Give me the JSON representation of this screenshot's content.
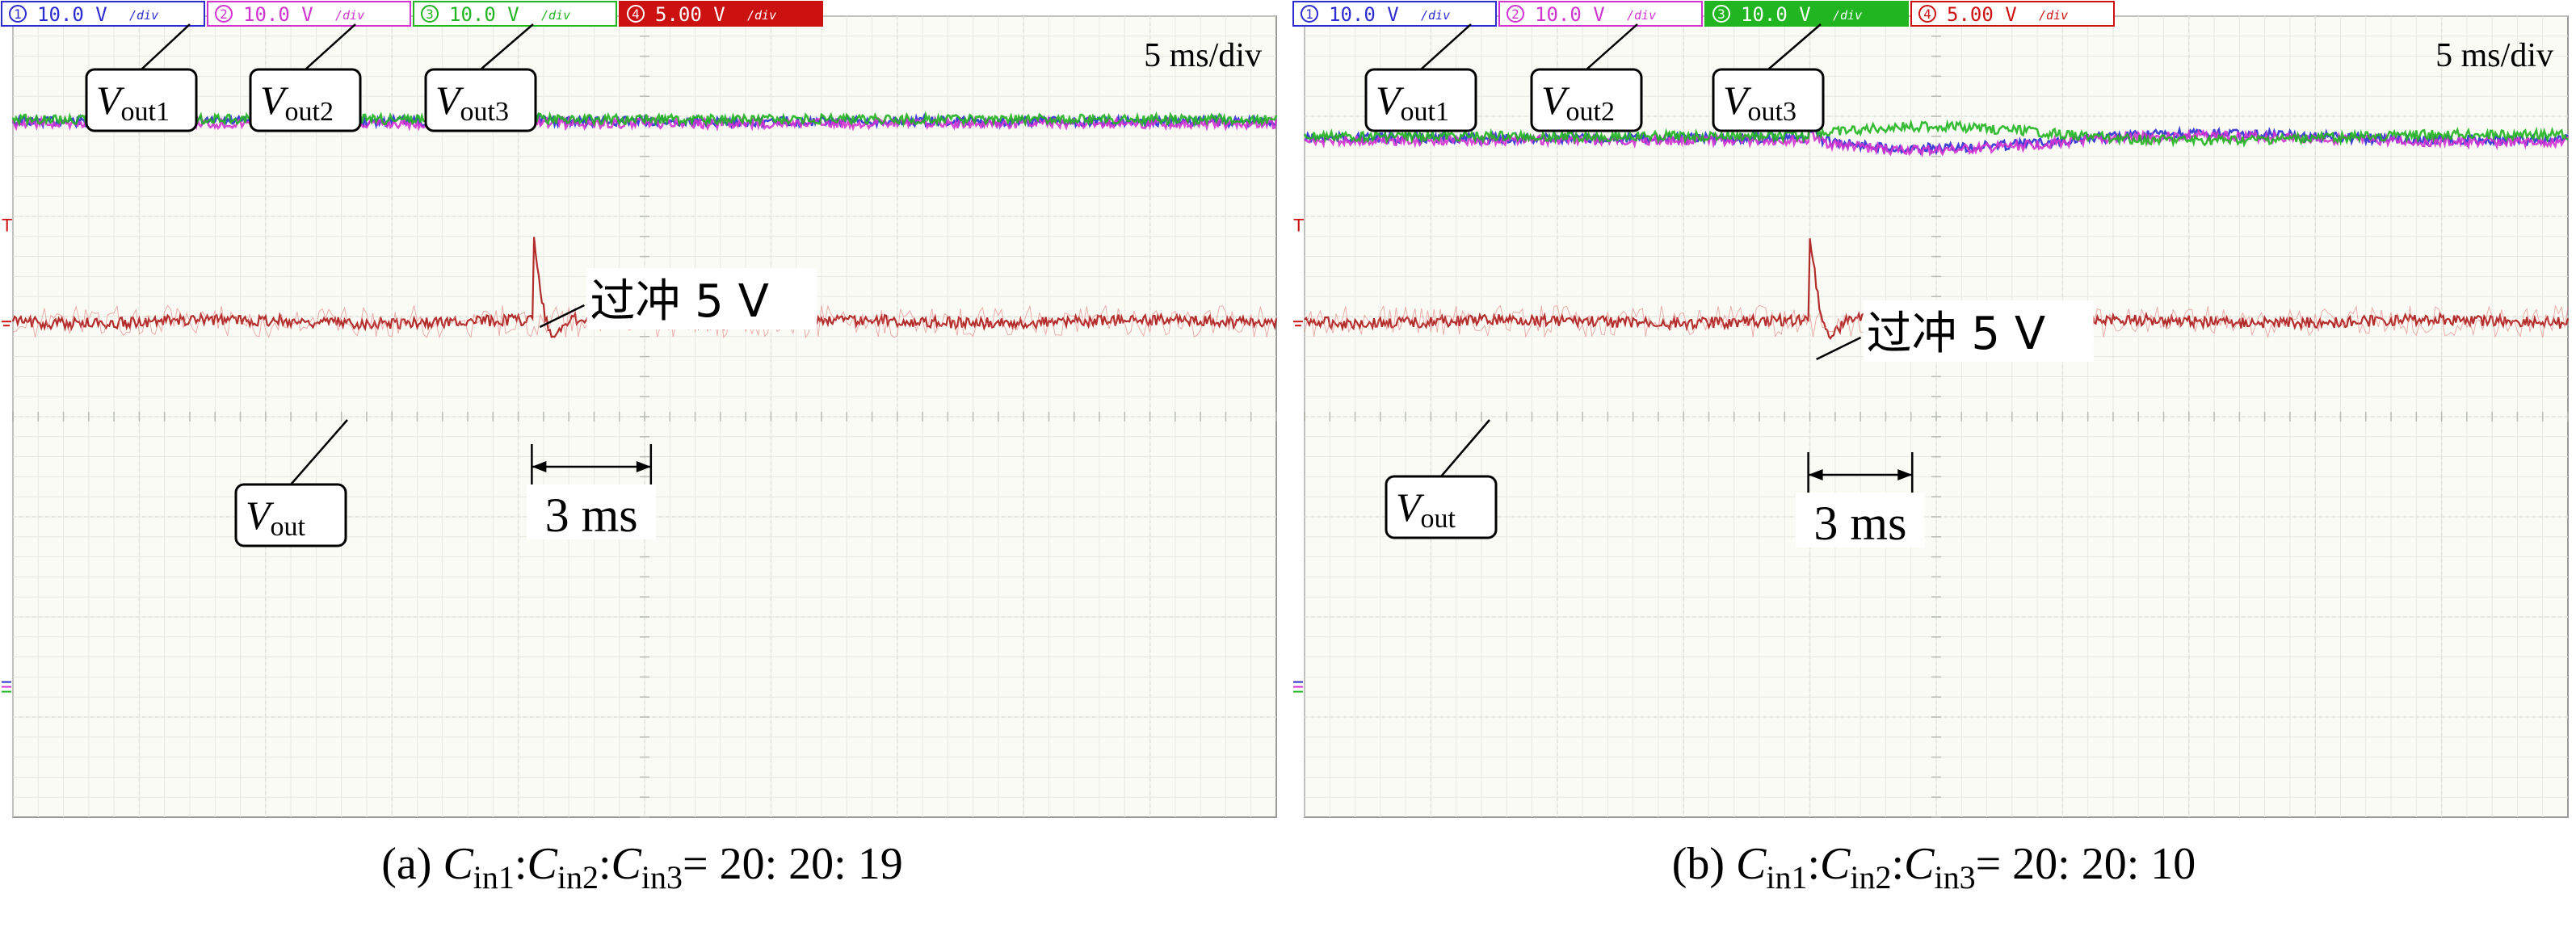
{
  "chart_data": [
    {
      "panel": "a",
      "type": "line",
      "caption": {
        "prefix": "(a) ",
        "ratio": "= 20: 20: 19"
      },
      "timebase": "5 ms/div",
      "channels": [
        {
          "id": "1",
          "scale": "10.0 V",
          "unit": "div",
          "color": "#2b2bd0"
        },
        {
          "id": "2",
          "scale": "10.0 V",
          "unit": "div",
          "color": "#d033d0"
        },
        {
          "id": "3",
          "scale": "10.0 V",
          "unit": "div",
          "color": "#22b522"
        },
        {
          "id": "4",
          "scale": "5.00 V",
          "unit": "div",
          "color": "#cc1111"
        }
      ],
      "labels": {
        "vout1": "out1",
        "vout2": "out2",
        "vout3": "out3",
        "vout": "out"
      },
      "overshoot_label": "过冲 5 V",
      "duration_label": "3 ms",
      "grid_divisions": {
        "x": 10,
        "y": 8
      },
      "series": [
        {
          "name": "Vout1",
          "color": "#2b2bd0",
          "level_div": 6.95
        },
        {
          "name": "Vout2",
          "color": "#d033d0",
          "level_div": 6.93
        },
        {
          "name": "Vout3",
          "color": "#22b522",
          "level_div": 6.97
        },
        {
          "name": "Vout",
          "color": "#aa1515",
          "level_div": 4.95,
          "overshoot_V": 5,
          "settle_ms": 3
        }
      ],
      "event_time_div": 4.12
    },
    {
      "panel": "b",
      "type": "line",
      "caption": {
        "prefix": "(b) ",
        "ratio": "= 20: 20: 10"
      },
      "timebase": "5 ms/div",
      "channels": [
        {
          "id": "1",
          "scale": "10.0 V",
          "unit": "div",
          "color": "#2b2bd0"
        },
        {
          "id": "2",
          "scale": "10.0 V",
          "unit": "div",
          "color": "#d033d0"
        },
        {
          "id": "3",
          "scale": "10.0 V",
          "unit": "div",
          "color": "#22b522"
        },
        {
          "id": "4",
          "scale": "5.00 V",
          "unit": "div",
          "color": "#cc1111"
        }
      ],
      "labels": {
        "vout1": "out1",
        "vout2": "out2",
        "vout3": "out3",
        "vout": "out"
      },
      "overshoot_label": "过冲 5 V",
      "duration_label": "3 ms",
      "grid_divisions": {
        "x": 10,
        "y": 8
      },
      "series": [
        {
          "name": "Vout1",
          "color": "#2b2bd0",
          "level_div": 6.78
        },
        {
          "name": "Vout2",
          "color": "#d033d0",
          "level_div": 6.76
        },
        {
          "name": "Vout3",
          "color": "#22b522",
          "level_div": 6.8
        },
        {
          "name": "Vout",
          "color": "#aa1515",
          "level_div": 4.95,
          "overshoot_V": 5,
          "settle_ms": 3
        }
      ],
      "event_time_div": 4.0
    }
  ]
}
